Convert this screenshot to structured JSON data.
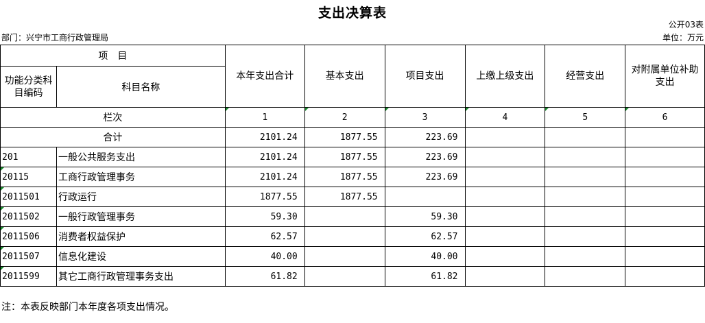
{
  "header": {
    "title": "支出决算表",
    "code": "公开03表",
    "department": "部门：兴宁市工商行政管理局",
    "unit": "单位：万元"
  },
  "table": {
    "item_header": "项　目",
    "func_code_header": "功能分类科目编码",
    "subject_name_header": "科目名称",
    "col_headers": [
      "本年支出合计",
      "基本支出",
      "项目支出",
      "上缴上级支出",
      "经营支出",
      "对附属单位补助支出"
    ],
    "column_no_label": "栏次",
    "column_numbers": [
      "1",
      "2",
      "3",
      "4",
      "5",
      "6"
    ],
    "total_label": "合计",
    "total_values": [
      "2101.24",
      "1877.55",
      "223.69",
      "",
      "",
      ""
    ],
    "rows": [
      {
        "code": "201",
        "name": "一般公共服务支出",
        "values": [
          "2101.24",
          "1877.55",
          "223.69",
          "",
          "",
          ""
        ]
      },
      {
        "code": "20115",
        "name": "工商行政管理事务",
        "values": [
          "2101.24",
          "1877.55",
          "223.69",
          "",
          "",
          ""
        ]
      },
      {
        "code": "2011501",
        "name": "行政运行",
        "values": [
          "1877.55",
          "1877.55",
          "",
          "",
          "",
          ""
        ]
      },
      {
        "code": "2011502",
        "name": "一般行政管理事务",
        "values": [
          "59.30",
          "",
          "59.30",
          "",
          "",
          ""
        ]
      },
      {
        "code": "2011506",
        "name": "消费者权益保护",
        "values": [
          "62.57",
          "",
          "62.57",
          "",
          "",
          ""
        ]
      },
      {
        "code": "2011507",
        "name": "信息化建设",
        "values": [
          "40.00",
          "",
          "40.00",
          "",
          "",
          ""
        ]
      },
      {
        "code": "2011599",
        "name": "其它工商行政管理事务支出",
        "values": [
          "61.82",
          "",
          "61.82",
          "",
          "",
          ""
        ]
      }
    ]
  },
  "footer": {
    "note": "注：本表反映部门本年度各项支出情况。"
  },
  "colors": {
    "border": "#000000",
    "cell_marker": "#1a8a2e"
  }
}
